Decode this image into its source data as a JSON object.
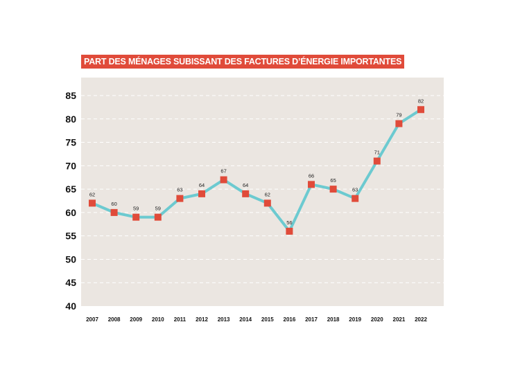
{
  "chart_data": {
    "type": "line",
    "title": "PART DES MÉNAGES SUBISSANT DES FACTURES D’ÉNERGIE IMPORTANTES",
    "xlabel": "",
    "ylabel": "",
    "x": [
      "2007",
      "2008",
      "2009",
      "2010",
      "2011",
      "2012",
      "2013",
      "2014",
      "2015",
      "2016",
      "2017",
      "2018",
      "2019",
      "2020",
      "2021",
      "2022"
    ],
    "series": [
      {
        "values": [
          62,
          60,
          59,
          59,
          63,
          64,
          67,
          64,
          62,
          56,
          66,
          65,
          63,
          71,
          79,
          82
        ]
      }
    ],
    "data_labels": [
      "62",
      "60",
      "59",
      "59",
      "63",
      "64",
      "67",
      "64",
      "62",
      "56",
      "66",
      "65",
      "63",
      "71",
      "79",
      "82"
    ],
    "y_ticks": [
      "40",
      "45",
      "50",
      "55",
      "60",
      "65",
      "70",
      "75",
      "80",
      "85"
    ],
    "ylim": [
      40,
      88
    ],
    "grid": "horizontal dashed",
    "colors": {
      "title_background": "#e04b3a",
      "title_text": "#ffffff",
      "plot_background": "#ebe6e1",
      "line": "#6ccad0",
      "marker": "#e04b3a",
      "grid": "#ffffff"
    }
  }
}
